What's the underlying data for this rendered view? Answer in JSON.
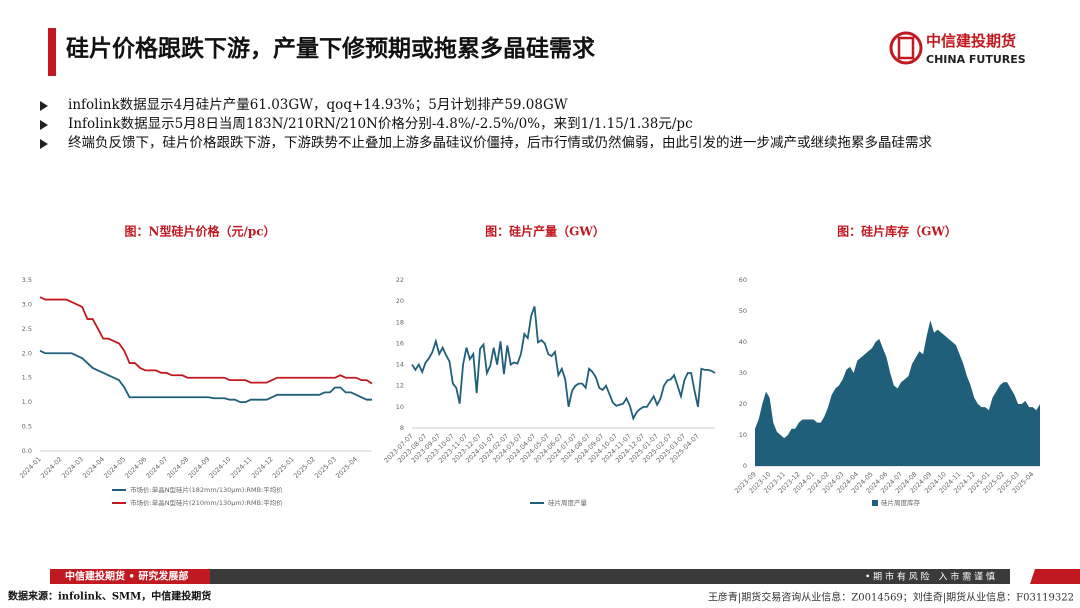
{
  "header": {
    "title": "硅片价格跟跌下游，产量下修预期或拖累多晶硅需求",
    "logo_cn": "中信建投期货",
    "logo_en": "CHINA FUTURES"
  },
  "bullets": [
    "infolink数据显示4月硅片产量61.03GW，qoq+14.93%；5月计划排产59.08GW",
    "Infolink数据显示5月8日当周183N/210RN/210N价格分别-4.8%/-2.5%/0%，来到1/1.15/1.38元/pc",
    "终端负反馈下，硅片价格跟跌下游，下游跌势不止叠加上游多晶硅议价僵持，后市行情或仍然偏弱，由此引发的进一步减产或继续拖累多晶硅需求"
  ],
  "chart_data": [
    {
      "type": "line",
      "title": "图：N型硅片价格（元/pc）",
      "legend": "bottom",
      "categories": [
        "2024-01",
        null,
        null,
        null,
        "2024-02",
        null,
        null,
        null,
        "2024-03",
        null,
        null,
        null,
        "2024-04",
        null,
        null,
        null,
        "2024-05",
        null,
        null,
        null,
        "2024-06",
        null,
        null,
        null,
        "2024-07",
        null,
        null,
        null,
        "2024-08",
        null,
        null,
        null,
        "2024-09",
        null,
        null,
        null,
        "2024-10",
        null,
        null,
        null,
        "2024-11",
        null,
        null,
        null,
        "2024-12",
        null,
        null,
        null,
        "2025-01",
        null,
        null,
        null,
        "2025-02",
        null,
        null,
        null,
        "2025-03",
        null,
        null,
        null,
        "2025-04",
        null,
        null,
        null
      ],
      "series": [
        {
          "name": "市场价:单晶N型硅片(182mm/130μm):RMB:平均价",
          "color": "#1f5f7a",
          "values": [
            2.05,
            2.0,
            2.0,
            2.0,
            2.0,
            2.0,
            2.0,
            1.95,
            1.9,
            1.8,
            1.7,
            1.65,
            1.6,
            1.55,
            1.5,
            1.45,
            1.3,
            1.1,
            1.1,
            1.1,
            1.1,
            1.1,
            1.1,
            1.1,
            1.1,
            1.1,
            1.1,
            1.1,
            1.1,
            1.1,
            1.1,
            1.1,
            1.1,
            1.08,
            1.08,
            1.08,
            1.05,
            1.05,
            1.0,
            1.0,
            1.05,
            1.05,
            1.05,
            1.05,
            1.1,
            1.15,
            1.15,
            1.15,
            1.15,
            1.15,
            1.15,
            1.15,
            1.15,
            1.15,
            1.2,
            1.2,
            1.3,
            1.3,
            1.2,
            1.2,
            1.15,
            1.1,
            1.05,
            1.05
          ]
        },
        {
          "name": "市场价:单晶N型硅片(210mm/130μm):RMB:平均价",
          "color": "#c0191f",
          "values": [
            3.15,
            3.1,
            3.1,
            3.1,
            3.1,
            3.1,
            3.05,
            3.0,
            2.95,
            2.7,
            2.7,
            2.5,
            2.3,
            2.3,
            2.25,
            2.2,
            2.05,
            1.8,
            1.8,
            1.7,
            1.65,
            1.65,
            1.65,
            1.6,
            1.6,
            1.55,
            1.55,
            1.55,
            1.5,
            1.5,
            1.5,
            1.5,
            1.5,
            1.5,
            1.5,
            1.5,
            1.45,
            1.45,
            1.45,
            1.45,
            1.4,
            1.4,
            1.4,
            1.4,
            1.45,
            1.5,
            1.5,
            1.5,
            1.5,
            1.5,
            1.5,
            1.5,
            1.5,
            1.5,
            1.5,
            1.5,
            1.5,
            1.55,
            1.5,
            1.5,
            1.5,
            1.45,
            1.45,
            1.38
          ]
        }
      ],
      "ylim": [
        0,
        3.5
      ],
      "yticks": [
        {
          "value": 0,
          "label": "0.0"
        },
        0.5,
        {
          "value": 1,
          "label": "1.0"
        },
        1.5,
        {
          "value": 2,
          "label": "2.0"
        },
        2.5,
        {
          "value": 3,
          "label": "3.0"
        },
        3.5
      ]
    },
    {
      "type": "line",
      "title": "图：硅片产量（GW）",
      "legend": "bottom",
      "categories": [
        "2023-07-07",
        null,
        null,
        null,
        "2023-08-07",
        null,
        null,
        null,
        "2023-09-07",
        null,
        null,
        null,
        "2023-10-07",
        null,
        null,
        null,
        "2023-11-07",
        null,
        null,
        null,
        "2023-12-07",
        null,
        null,
        null,
        "2024-01-07",
        null,
        null,
        null,
        "2024-02-07",
        null,
        null,
        null,
        "2024-03-07",
        null,
        null,
        null,
        "2024-04-07",
        null,
        null,
        null,
        "2024-05-07",
        null,
        null,
        null,
        "2024-06-07",
        null,
        null,
        null,
        "2024-07-07",
        null,
        null,
        null,
        "2024-08-07",
        null,
        null,
        null,
        "2024-09-07",
        null,
        null,
        null,
        "2024-10-07",
        null,
        null,
        null,
        "2024-11-07",
        null,
        null,
        null,
        "2024-12-07",
        null,
        null,
        null,
        "2025-01-07",
        null,
        null,
        null,
        "2025-02-07",
        null,
        null,
        null,
        "2025-03-07",
        null,
        null,
        null,
        "2025-04-07",
        null,
        null,
        null,
        null,
        null
      ],
      "series": [
        {
          "name": "硅片周度产量",
          "color": "#1f5f7a",
          "values": [
            14.0,
            13.5,
            14.0,
            13.3,
            14.2,
            14.6,
            15.2,
            16.2,
            15.0,
            15.6,
            14.9,
            14.3,
            12.2,
            11.8,
            10.3,
            14.0,
            15.6,
            14.5,
            15.0,
            11.3,
            15.5,
            15.9,
            13.2,
            13.9,
            15.6,
            14.0,
            16.2,
            13.1,
            15.8,
            14.0,
            14.2,
            14.1,
            15.0,
            16.9,
            16.5,
            18.6,
            19.5,
            16.1,
            16.3,
            16.0,
            15.0,
            14.8,
            15.2,
            13.0,
            13.6,
            12.6,
            10.0,
            11.5,
            12.0,
            12.2,
            12.2,
            11.8,
            13.6,
            13.3,
            12.8,
            11.8,
            11.6,
            12.0,
            11.2,
            10.4,
            10.1,
            10.2,
            10.3,
            10.8,
            10.1,
            8.9,
            9.5,
            9.8,
            10.0,
            10.0,
            10.5,
            11.0,
            10.2,
            10.8,
            12.0,
            12.5,
            12.6,
            13.0,
            12.0,
            11.0,
            12.5,
            13.2,
            13.2,
            11.5,
            10.0,
            13.6,
            13.5,
            13.5,
            13.4,
            13.2
          ]
        }
      ],
      "ylim": [
        8,
        22
      ],
      "yticks": [
        8,
        10,
        12,
        14,
        16,
        18,
        20,
        22
      ]
    },
    {
      "type": "area",
      "title": "图：硅片库存（GW）",
      "legend": "bottom",
      "categories": [
        "2023-09",
        null,
        null,
        null,
        "2023-10",
        null,
        null,
        null,
        "2023-11",
        null,
        null,
        null,
        "2023-12",
        null,
        null,
        null,
        "2024-01",
        null,
        null,
        null,
        "2024-02",
        null,
        null,
        null,
        "2024-03",
        null,
        null,
        null,
        "2024-04",
        null,
        null,
        null,
        "2024-05",
        null,
        null,
        null,
        "2024-06",
        null,
        null,
        null,
        "2024-07",
        null,
        null,
        null,
        "2024-08",
        null,
        null,
        null,
        "2024-09",
        null,
        null,
        null,
        "2024-10",
        null,
        null,
        null,
        "2024-11",
        null,
        null,
        null,
        "2024-12",
        null,
        null,
        null,
        "2025-01",
        null,
        null,
        null,
        "2025-02",
        null,
        null,
        null,
        "2025-03",
        null,
        null,
        null,
        "2025-04",
        null,
        null
      ],
      "series": [
        {
          "name": "硅片周度库存",
          "color": "#1f5f7a",
          "values": [
            12,
            15,
            20,
            24,
            22,
            14,
            11,
            10,
            9,
            10,
            12,
            12,
            14,
            15,
            15,
            15,
            15,
            14,
            14,
            16,
            19,
            23,
            25,
            26,
            28,
            31,
            32,
            30,
            34,
            35,
            36,
            37,
            38,
            40,
            41,
            38,
            35,
            30,
            26,
            25,
            27,
            28,
            29,
            33,
            35,
            37,
            36,
            42,
            47,
            43,
            44,
            43,
            42,
            41,
            40,
            39,
            36,
            33,
            29,
            26,
            22,
            20,
            19,
            19,
            18,
            22,
            24,
            26,
            27,
            27,
            25,
            23,
            20,
            20,
            21,
            19,
            19,
            18,
            20
          ]
        }
      ],
      "ylim": [
        0,
        60
      ],
      "yticks": [
        0,
        10,
        20,
        30,
        40,
        50,
        60
      ]
    }
  ],
  "footer": {
    "dept": "中信建投期货 • 研究发展部",
    "risk": "• 期 市 有 风 险　入 市 需 谨 慎",
    "source": "数据来源：infolink、SMM，中信建投期货",
    "analysts": "王彦青|期货交易咨询从业信息：Z0014569；刘佳奇|期货从业信息：F03119322"
  }
}
